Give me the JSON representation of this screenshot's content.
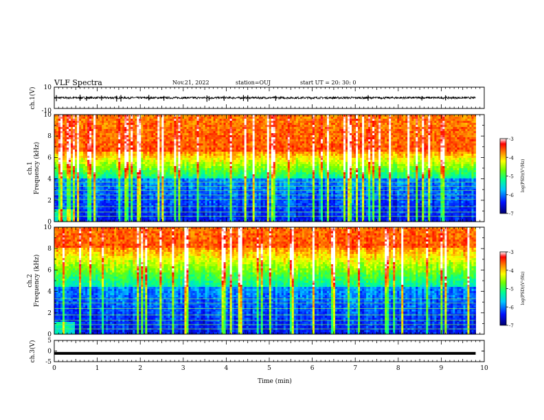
{
  "header": {
    "title": "VLF Spectra",
    "date": "Nov.21, 2022",
    "station": "station=OUJ",
    "start": "start  UT =   20: 30: 0"
  },
  "chart_data": [
    {
      "type": "line",
      "panel": "ch1-waveform",
      "ylabel": "ch.1(V)",
      "ylim": [
        -10,
        10
      ],
      "yticks": [
        "10",
        "-10"
      ],
      "xlim": [
        0,
        10
      ],
      "baseline_value": 0,
      "noise_amplitude": 1,
      "spikes_min": [
        0.05,
        0.6,
        0.75,
        1.1,
        1.45,
        1.55,
        2.2,
        2.55,
        3.55,
        3.6,
        3.95,
        4.4,
        4.5,
        5.15,
        7.3,
        8.55,
        9.1
      ],
      "spike_value_range": [
        -4,
        3
      ]
    },
    {
      "type": "heatmap",
      "panel": "ch1-spectrogram",
      "ylabel": "ch.1",
      "ylabel2": "Frequency (kHz)",
      "ylim": [
        0,
        10
      ],
      "yticks": [
        "0",
        "2",
        "4",
        "6",
        "8",
        "10"
      ],
      "xlim": [
        0,
        9.8
      ],
      "colorbar": {
        "label": "log(PSD)(V²/Hz)",
        "range": [
          -7,
          -3
        ],
        "ticks": [
          "-3",
          "-4",
          "-5",
          "-6",
          "-7"
        ]
      },
      "description_bands": {
        "high_power_above_khz": 6.5,
        "mid_power_khz": [
          4,
          6.5
        ],
        "low_power_below_khz": 4,
        "line_frequencies_khz": [
          0.5,
          0.9,
          1.4,
          2.1,
          2.5,
          2.9,
          3.3,
          3.7
        ]
      }
    },
    {
      "type": "heatmap",
      "panel": "ch2-spectrogram",
      "ylabel": "ch.2",
      "ylabel2": "Frequency (kHz)",
      "ylim": [
        0,
        10
      ],
      "yticks": [
        "0",
        "2",
        "4",
        "6",
        "8",
        "10"
      ],
      "xlim": [
        0,
        9.8
      ],
      "colorbar": {
        "label": "log(PSD)(V²/Hz)",
        "range": [
          -7,
          -3
        ],
        "ticks": [
          "-3",
          "-4",
          "-5",
          "-6",
          "-7"
        ]
      },
      "description_bands": {
        "high_power_above_khz": 8,
        "mid_power_khz": [
          4.5,
          8
        ],
        "low_power_below_khz": 4.5,
        "line_frequencies_khz": [
          0.5,
          0.9,
          1.3,
          1.8,
          2.4,
          2.9,
          3.3
        ]
      }
    },
    {
      "type": "line",
      "panel": "ch3-waveform",
      "ylabel": "ch.3(V)",
      "ylim": [
        -5,
        5
      ],
      "yticks": [
        "5",
        "0",
        "-5"
      ],
      "xlim": [
        0,
        10
      ],
      "xticks": [
        "0",
        "1",
        "2",
        "3",
        "4",
        "5",
        "6",
        "7",
        "8",
        "9",
        "10"
      ],
      "xlabel": "Time (min)",
      "constant_value": -1.1
    }
  ]
}
